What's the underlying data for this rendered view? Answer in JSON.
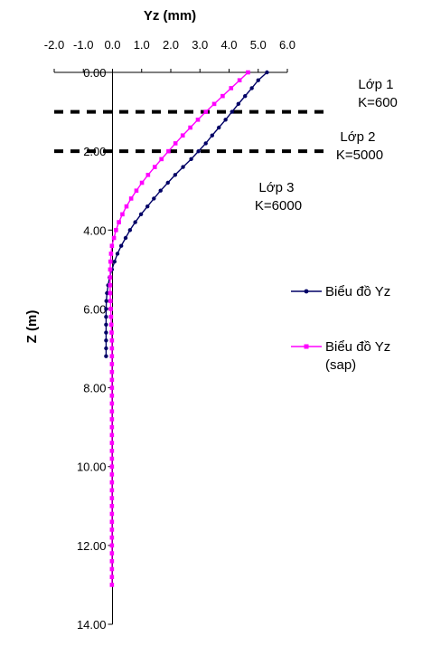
{
  "chart_data": {
    "type": "line",
    "xlabel": "Yz (mm)",
    "ylabel": "Z (m)",
    "xlim": [
      -2.0,
      6.0
    ],
    "ylim": [
      0,
      14
    ],
    "x_ticks": [
      "-2.0",
      "-1.0",
      "0.0",
      "1.0",
      "2.0",
      "3.0",
      "4.0",
      "5.0",
      "6.0"
    ],
    "y_ticks": [
      "0.00",
      "2.00",
      "4.00",
      "6.00",
      "8.00",
      "10.00",
      "12.00",
      "14.00"
    ],
    "x_axis_position": "top",
    "y_reversed": true,
    "grid": false,
    "legend_position": "right",
    "series": [
      {
        "name": "Biểu đồ Yz",
        "color": "#000066",
        "marker": "circle",
        "points": [
          [
            5.3,
            0.0
          ],
          [
            5.0,
            0.2
          ],
          [
            4.78,
            0.4
          ],
          [
            4.55,
            0.6
          ],
          [
            4.32,
            0.8
          ],
          [
            4.1,
            1.0
          ],
          [
            3.88,
            1.2
          ],
          [
            3.65,
            1.4
          ],
          [
            3.42,
            1.6
          ],
          [
            3.2,
            1.8
          ],
          [
            2.95,
            2.0
          ],
          [
            2.7,
            2.2
          ],
          [
            2.42,
            2.4
          ],
          [
            2.15,
            2.6
          ],
          [
            1.9,
            2.8
          ],
          [
            1.65,
            3.0
          ],
          [
            1.42,
            3.2
          ],
          [
            1.2,
            3.4
          ],
          [
            0.98,
            3.6
          ],
          [
            0.78,
            3.8
          ],
          [
            0.6,
            4.0
          ],
          [
            0.45,
            4.2
          ],
          [
            0.3,
            4.4
          ],
          [
            0.17,
            4.6
          ],
          [
            0.07,
            4.8
          ],
          [
            -0.02,
            5.0
          ],
          [
            -0.1,
            5.2
          ],
          [
            -0.15,
            5.4
          ],
          [
            -0.19,
            5.6
          ],
          [
            -0.21,
            5.8
          ],
          [
            -0.22,
            6.0
          ],
          [
            -0.22,
            6.2
          ],
          [
            -0.22,
            6.4
          ],
          [
            -0.22,
            6.6
          ],
          [
            -0.22,
            6.8
          ],
          [
            -0.22,
            7.0
          ],
          [
            -0.22,
            7.2
          ]
        ]
      },
      {
        "name": "Biểu đồ Yz (sap)",
        "color": "#ff00ff",
        "marker": "square",
        "points": [
          [
            4.65,
            0.0
          ],
          [
            4.36,
            0.2
          ],
          [
            4.07,
            0.4
          ],
          [
            3.78,
            0.6
          ],
          [
            3.49,
            0.8
          ],
          [
            3.2,
            1.0
          ],
          [
            2.93,
            1.2
          ],
          [
            2.67,
            1.4
          ],
          [
            2.41,
            1.6
          ],
          [
            2.16,
            1.8
          ],
          [
            1.92,
            2.0
          ],
          [
            1.68,
            2.2
          ],
          [
            1.45,
            2.4
          ],
          [
            1.22,
            2.6
          ],
          [
            1.01,
            2.8
          ],
          [
            0.82,
            3.0
          ],
          [
            0.64,
            3.2
          ],
          [
            0.48,
            3.4
          ],
          [
            0.34,
            3.6
          ],
          [
            0.22,
            3.8
          ],
          [
            0.12,
            4.0
          ],
          [
            0.05,
            4.2
          ],
          [
            -0.02,
            4.4
          ],
          [
            -0.05,
            4.6
          ],
          [
            -0.07,
            4.8
          ],
          [
            -0.08,
            5.0
          ],
          [
            -0.08,
            5.2
          ],
          [
            -0.08,
            5.4
          ],
          [
            -0.08,
            5.6
          ],
          [
            -0.07,
            5.8
          ],
          [
            -0.06,
            6.0
          ],
          [
            -0.05,
            6.2
          ],
          [
            -0.04,
            6.4
          ],
          [
            -0.03,
            6.6
          ],
          [
            -0.02,
            6.8
          ],
          [
            -0.02,
            7.0
          ],
          [
            -0.02,
            7.2
          ],
          [
            -0.02,
            7.4
          ],
          [
            -0.02,
            7.6
          ],
          [
            -0.02,
            7.8
          ],
          [
            -0.02,
            8.0
          ],
          [
            -0.02,
            8.2
          ],
          [
            -0.02,
            8.4
          ],
          [
            -0.02,
            8.6
          ],
          [
            -0.02,
            8.8
          ],
          [
            -0.02,
            9.0
          ],
          [
            -0.02,
            9.2
          ],
          [
            -0.02,
            9.4
          ],
          [
            -0.02,
            9.6
          ],
          [
            -0.02,
            9.8
          ],
          [
            -0.02,
            10.0
          ],
          [
            -0.02,
            10.2
          ],
          [
            -0.02,
            10.4
          ],
          [
            -0.02,
            10.6
          ],
          [
            -0.02,
            10.8
          ],
          [
            -0.02,
            11.0
          ],
          [
            -0.02,
            11.2
          ],
          [
            -0.02,
            11.4
          ],
          [
            -0.02,
            11.6
          ],
          [
            -0.02,
            11.8
          ],
          [
            -0.02,
            12.0
          ],
          [
            -0.02,
            12.2
          ],
          [
            -0.02,
            12.4
          ],
          [
            -0.02,
            12.6
          ],
          [
            -0.02,
            12.8
          ],
          [
            -0.02,
            13.0
          ]
        ]
      }
    ],
    "layer_boundaries": [
      1.0,
      2.0
    ],
    "annotations": [
      {
        "id": "layer1",
        "lines": [
          "Lớp 1",
          "K=600"
        ]
      },
      {
        "id": "layer2",
        "lines": [
          "Lớp 2",
          "K=5000"
        ]
      },
      {
        "id": "layer3",
        "lines": [
          "Lớp 3",
          "K=6000"
        ]
      }
    ]
  }
}
